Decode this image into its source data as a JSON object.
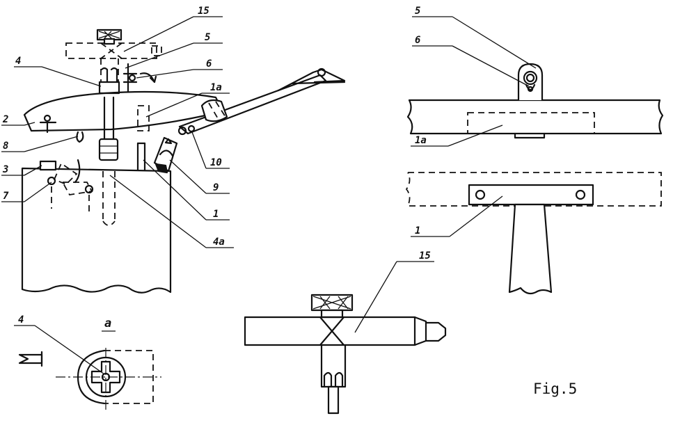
{
  "figure": {
    "caption": "Fig.5",
    "left_view": {
      "labels": [
        "15",
        "5",
        "4",
        "6",
        "1a",
        "2",
        "8",
        "10",
        "3",
        "9",
        "7",
        "1",
        "4a"
      ]
    },
    "detail_view": {
      "title": "a",
      "labels": [
        "4"
      ]
    },
    "right_view": {
      "labels": [
        "5",
        "6",
        "1a",
        "1"
      ]
    },
    "bottom_view": {
      "labels": [
        "15"
      ]
    }
  }
}
